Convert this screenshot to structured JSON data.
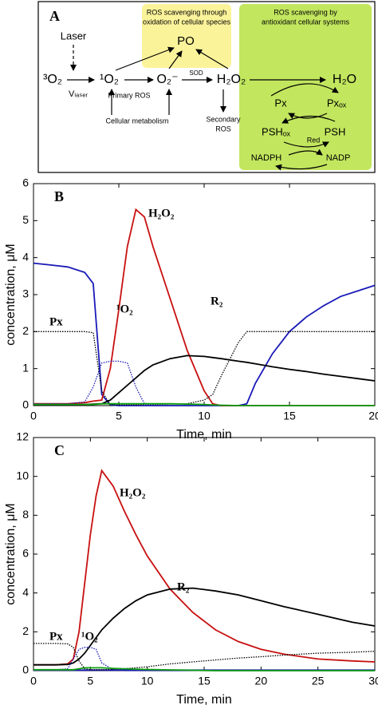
{
  "diagram": {
    "panel": "A",
    "laser": "Laser",
    "triplet_o2": "³O₂",
    "v_laser": "Vₗₐₛₑᵣ",
    "singlet_o2": "¹O₂",
    "primary_ros": "Primary ROS",
    "superoxide": "O₂⁻",
    "sod": "SOD",
    "h2o2": "H₂O₂",
    "h2o": "H₂O",
    "po": "PO",
    "cellular_metabolism": "Cellular metabolism",
    "secondary_ros": [
      "Secondary",
      "ROS"
    ],
    "yellow_box": [
      "ROS scavenging through",
      "oxidation of cellular species"
    ],
    "green_box": [
      "ROS scavenging by",
      "antioxidant cellular systems"
    ],
    "px": "Px",
    "px_ox": "Pxₒₓ",
    "psh_ox": "PSHₒₓ",
    "psh": "PSH",
    "red": "Red",
    "nadph": "NADPH",
    "nadp": "NADP"
  },
  "chart_data": [
    {
      "type": "line",
      "title": "B",
      "x_label": "Time, min",
      "y_label": "concentration, μM",
      "xlim": [
        0,
        20
      ],
      "xticks": [
        0,
        5,
        10,
        15,
        20
      ],
      "ylim": [
        0,
        6
      ],
      "yticks": [
        0,
        1,
        2,
        3,
        4,
        5,
        6
      ],
      "x": [
        0,
        1,
        2,
        3,
        3.5,
        4,
        4.5,
        5,
        5.5,
        6,
        6.5,
        7,
        8,
        9,
        10,
        10.5,
        11,
        12,
        12.5,
        13,
        14,
        15,
        16,
        17,
        18,
        19,
        20
      ],
      "series": [
        {
          "color": "#1a1ab8",
          "style": "solid",
          "values": [
            3.85,
            3.8,
            3.75,
            3.6,
            3.3,
            0.3,
            0.02,
            0,
            0,
            0,
            0,
            0,
            0,
            0,
            0,
            0,
            0,
            0,
            0.05,
            0.6,
            1.4,
            2.0,
            2.4,
            2.7,
            2.95,
            3.1,
            3.25
          ]
        },
        {
          "name": "H₂O₂",
          "color": "#c81010",
          "style": "solid",
          "values": [
            0.05,
            0.05,
            0.05,
            0.08,
            0.12,
            0.15,
            1.0,
            2.6,
            4.3,
            5.3,
            5.1,
            4.3,
            2.9,
            1.5,
            0.4,
            0.05,
            0,
            0,
            0,
            0,
            0,
            0,
            0,
            0,
            0,
            0,
            0
          ]
        },
        {
          "name": "R₂",
          "color": "#000000",
          "style": "solid",
          "values": [
            0.02,
            0.02,
            0.02,
            0.03,
            0.04,
            0.05,
            0.15,
            0.35,
            0.55,
            0.75,
            0.95,
            1.1,
            1.27,
            1.35,
            1.33,
            1.3,
            1.27,
            1.2,
            1.17,
            1.13,
            1.05,
            0.98,
            0.92,
            0.85,
            0.79,
            0.73,
            0.67
          ]
        },
        {
          "name": "Px",
          "color": "#000000",
          "style": "dotted",
          "values": [
            2,
            2,
            2,
            2,
            1.97,
            0.4,
            0.02,
            0.02,
            0.02,
            0.02,
            0.03,
            0.03,
            0.04,
            0.05,
            0.15,
            0.3,
            0.8,
            1.7,
            2,
            2,
            2,
            2,
            2,
            2,
            2,
            2,
            2
          ]
        },
        {
          "name": "¹O₂",
          "color": "#1a1ab8",
          "style": "dotted",
          "values": [
            0.05,
            0.05,
            0.05,
            0.1,
            0.5,
            1.15,
            1.2,
            1.2,
            1.15,
            0.5,
            0.05,
            0,
            0,
            0,
            0,
            0,
            0,
            0,
            0,
            0,
            0,
            0,
            0,
            0,
            0,
            0,
            0
          ]
        },
        {
          "color": "#10a010",
          "style": "solid",
          "values": [
            0.03,
            0.03,
            0.03,
            0.03,
            0.03,
            0.05,
            0.05,
            0.05,
            0.05,
            0.05,
            0.05,
            0.05,
            0.05,
            0.04,
            0.03,
            0.02,
            0.01,
            0,
            0,
            0,
            0,
            0,
            0,
            0,
            0,
            0,
            0
          ]
        }
      ]
    },
    {
      "type": "line",
      "title": "C",
      "x_label": "Time, min",
      "y_label": "concentration, μM",
      "xlim": [
        0,
        30
      ],
      "xticks": [
        0,
        5,
        10,
        15,
        20,
        25,
        30
      ],
      "ylim": [
        0,
        12
      ],
      "yticks": [
        0,
        2,
        4,
        6,
        8,
        10,
        12
      ],
      "x": [
        0,
        2,
        3,
        3.5,
        4,
        4.5,
        5,
        5.5,
        6,
        7,
        8,
        9,
        10,
        12,
        14,
        16,
        18,
        20,
        22,
        25,
        28,
        30
      ],
      "series": [
        {
          "color": "#1a1ab8",
          "style": "solid",
          "values": [
            0.03,
            0.03,
            0.03,
            0.03,
            0.03,
            0.03,
            0.03,
            0.03,
            0.03,
            0.03,
            0.03,
            0.03,
            0.03,
            0.03,
            0.03,
            0.03,
            0.03,
            0.03,
            0.03,
            0.03,
            0.03,
            0.03
          ]
        },
        {
          "name": "H₂O₂",
          "color": "#c81010",
          "style": "solid",
          "values": [
            0.3,
            0.3,
            0.35,
            0.6,
            2,
            4.5,
            7,
            9,
            10.3,
            9.5,
            8.2,
            7,
            5.9,
            4.2,
            3,
            2.1,
            1.5,
            1.1,
            0.85,
            0.6,
            0.5,
            0.45
          ]
        },
        {
          "name": "R₂",
          "color": "#000000",
          "style": "solid",
          "values": [
            0.3,
            0.3,
            0.32,
            0.4,
            0.6,
            0.9,
            1.3,
            1.7,
            2.1,
            2.7,
            3.2,
            3.6,
            3.9,
            4.2,
            4.25,
            4.1,
            3.9,
            3.6,
            3.3,
            2.9,
            2.5,
            2.3
          ]
        },
        {
          "name": "Px",
          "color": "#000000",
          "style": "dotted",
          "values": [
            1.4,
            1.4,
            1.38,
            1.2,
            0.5,
            0.1,
            0.05,
            0.05,
            0.05,
            0.07,
            0.1,
            0.15,
            0.2,
            0.35,
            0.45,
            0.55,
            0.65,
            0.72,
            0.8,
            0.9,
            0.95,
            1.0
          ]
        },
        {
          "name": "¹O₂",
          "color": "#1a1ab8",
          "style": "dotted",
          "values": [
            0.05,
            0.05,
            0.1,
            0.6,
            1.1,
            1.2,
            1.2,
            1.1,
            0.4,
            0.05,
            0,
            0,
            0,
            0,
            0,
            0,
            0,
            0,
            0,
            0,
            0,
            0
          ]
        },
        {
          "color": "#10a010",
          "style": "solid",
          "values": [
            0.05,
            0.05,
            0.05,
            0.05,
            0.1,
            0.15,
            0.15,
            0.15,
            0.15,
            0.12,
            0.1,
            0.08,
            0.06,
            0.04,
            0.02,
            0,
            0,
            0,
            0,
            0,
            0,
            0
          ]
        }
      ]
    }
  ]
}
